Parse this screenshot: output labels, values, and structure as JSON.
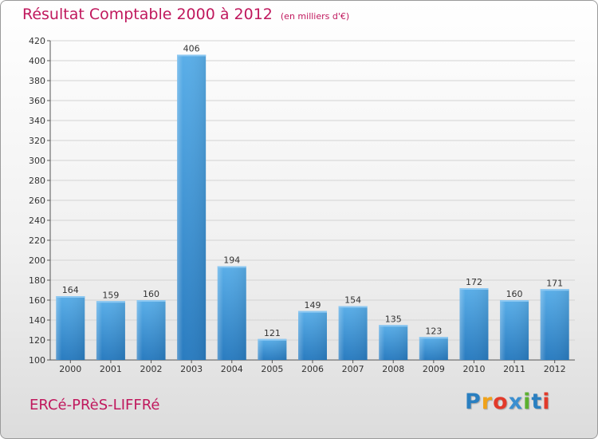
{
  "chart_data": {
    "type": "bar",
    "title": "Résultat Comptable 2000 à 2012",
    "unit": "(en milliers d'€)",
    "xlabel": "",
    "ylabel": "",
    "categories": [
      "2000",
      "2001",
      "2002",
      "2003",
      "2004",
      "2005",
      "2006",
      "2007",
      "2008",
      "2009",
      "2010",
      "2011",
      "2012"
    ],
    "values": [
      164,
      159,
      160,
      406,
      194,
      121,
      149,
      154,
      135,
      123,
      172,
      160,
      171
    ],
    "ylim": [
      100,
      420
    ],
    "yticks": [
      100,
      120,
      140,
      160,
      180,
      200,
      220,
      240,
      260,
      280,
      300,
      320,
      340,
      360,
      380,
      400,
      420
    ],
    "grid": true
  },
  "location": "ERCé-PRèS-LIFFRé",
  "brand": {
    "letters": [
      "P",
      "r",
      "o",
      "x",
      "i",
      "t",
      "i"
    ],
    "colors": [
      "#2a7fc0",
      "#f0a21a",
      "#e23a2a",
      "#3b8fd0",
      "#5cb030",
      "#2a7fc0",
      "#e23a2a"
    ]
  }
}
